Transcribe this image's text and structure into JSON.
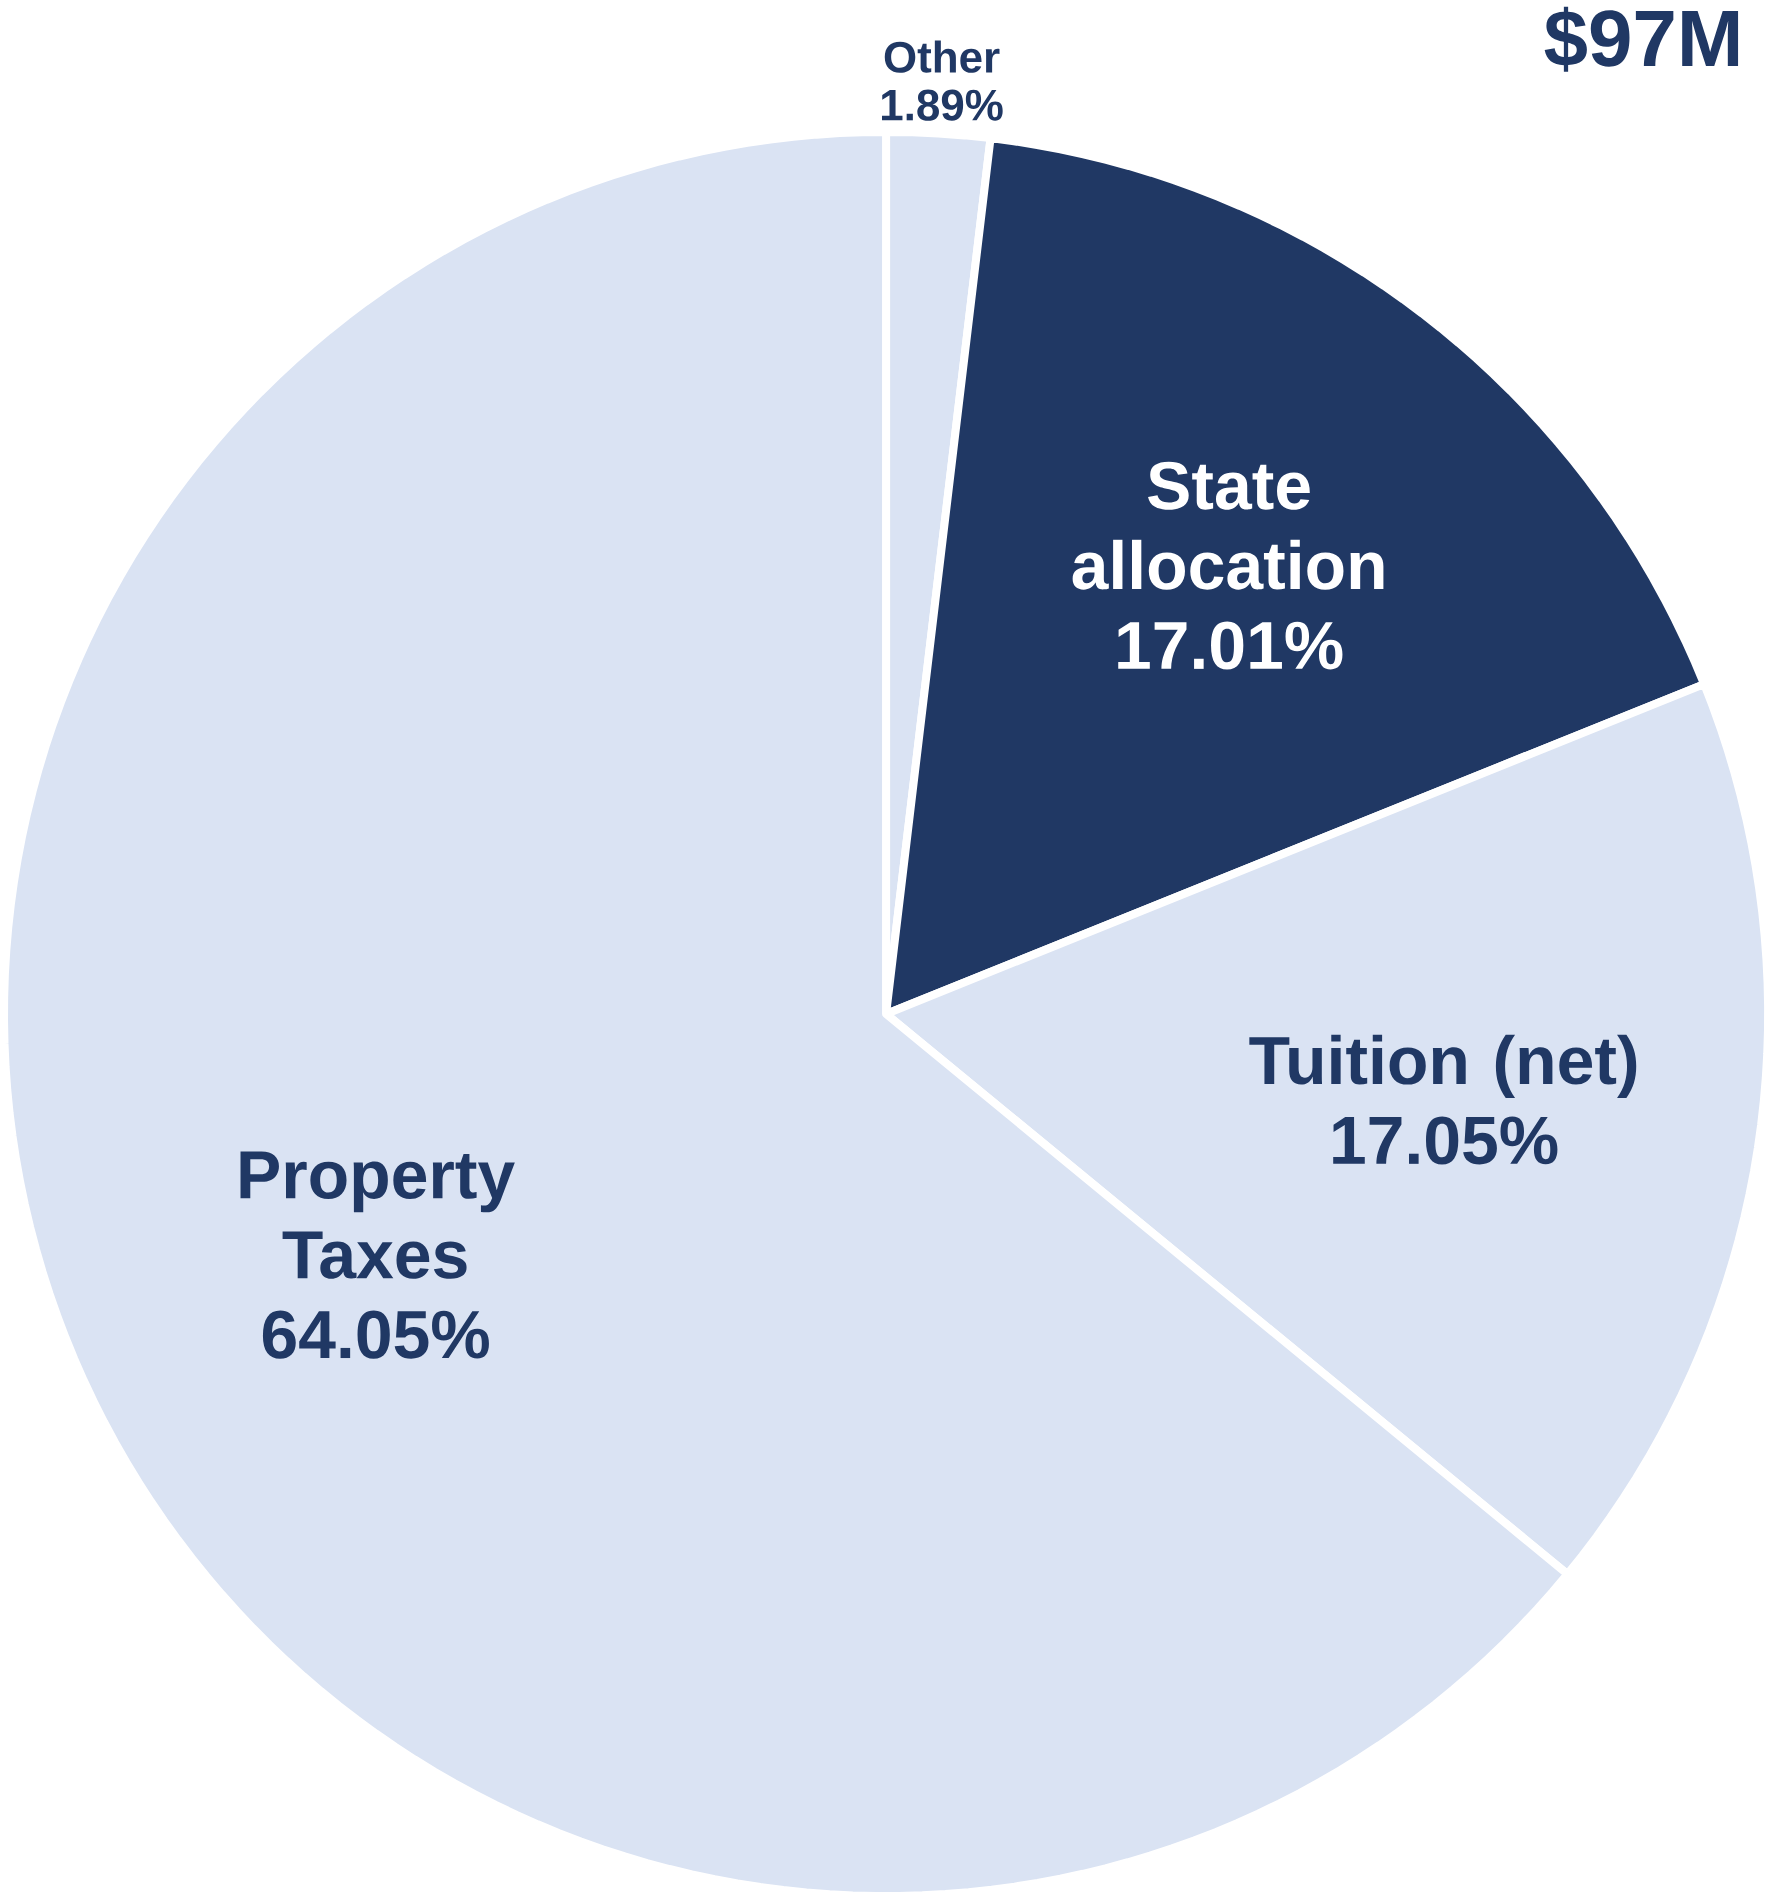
{
  "chart_data": {
    "type": "pie",
    "title": "$97M",
    "categories": [
      "Other",
      "State allocation",
      "Tuition (net)",
      "Property Taxes"
    ],
    "values": [
      1.89,
      17.01,
      17.05,
      64.05
    ],
    "value_labels": [
      "1.89%",
      "17.01%",
      "17.05%",
      "64.05%"
    ],
    "colors": [
      "#dae3f3",
      "#203864",
      "#dae3f3",
      "#dae3f3"
    ]
  }
}
